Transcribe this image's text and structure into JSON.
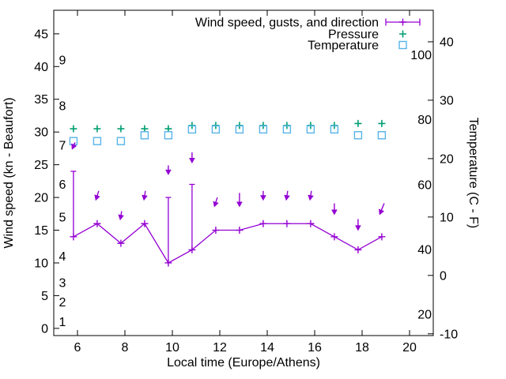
{
  "chart_data": {
    "type": "line",
    "title": "",
    "xlabel": "Local time (Europe/Athens)",
    "x_ticks": [
      6,
      8,
      10,
      12,
      14,
      16,
      18,
      20
    ],
    "x_plot_range": [
      5,
      21
    ],
    "x": [
      5.83,
      6.83,
      7.83,
      8.83,
      9.83,
      10.83,
      11.83,
      12.83,
      13.83,
      14.83,
      15.83,
      16.83,
      17.83,
      18.83
    ],
    "left_axis": {
      "label": "Wind speed (kn - Beaufort)",
      "ticks_kn": [
        0,
        5,
        10,
        15,
        20,
        25,
        30,
        35,
        40,
        45
      ],
      "plot_range_kn": [
        -1.1,
        48.6
      ],
      "beaufort_inner_labels": [
        {
          "bft": "1",
          "kn": 1
        },
        {
          "bft": "2",
          "kn": 4
        },
        {
          "bft": "3",
          "kn": 7
        },
        {
          "bft": "4",
          "kn": 11
        },
        {
          "bft": "5",
          "kn": 17
        },
        {
          "bft": "6",
          "kn": 22
        },
        {
          "bft": "7",
          "kn": 28
        },
        {
          "bft": "8",
          "kn": 34
        },
        {
          "bft": "9",
          "kn": 41
        }
      ]
    },
    "right_axis": {
      "label": "Temperature (C - F)",
      "ticks_c": [
        -10,
        0,
        10,
        20,
        30,
        40
      ],
      "plot_range_c": [
        -10.3,
        45.4
      ],
      "fahrenheit_inner_labels": [
        20,
        40,
        60,
        80,
        100
      ]
    },
    "series": [
      {
        "name": "Wind speed, gusts, and direction",
        "color": "#9400d3",
        "style": "line-with-plus-markers-yerrorbars-and-direction-arrows",
        "wind_kn": [
          14,
          16,
          13,
          16,
          10,
          12,
          15,
          15,
          16,
          16,
          16,
          14,
          12,
          14
        ],
        "gust_kn": [
          24,
          16,
          13,
          16,
          20,
          22,
          15,
          15,
          16,
          16,
          16,
          14,
          12,
          14
        ],
        "direction_arrows": [
          {
            "tail_kn": 28.4,
            "head_kn": 27.3,
            "lean": -2
          },
          {
            "tail_kn": 21.0,
            "head_kn": 19.5,
            "lean": -2
          },
          {
            "tail_kn": 17.9,
            "head_kn": 16.5,
            "lean": -1
          },
          {
            "tail_kn": 21.0,
            "head_kn": 19.5,
            "lean": -1
          },
          {
            "tail_kn": 24.9,
            "head_kn": 23.4,
            "lean": 0
          },
          {
            "tail_kn": 26.9,
            "head_kn": 25.2,
            "lean": 0
          },
          {
            "tail_kn": 20.0,
            "head_kn": 18.5,
            "lean": -2
          },
          {
            "tail_kn": 20.7,
            "head_kn": 18.5,
            "lean": 0
          },
          {
            "tail_kn": 21.0,
            "head_kn": 19.5,
            "lean": 0
          },
          {
            "tail_kn": 21.0,
            "head_kn": 19.5,
            "lean": -1
          },
          {
            "tail_kn": 21.0,
            "head_kn": 19.5,
            "lean": -1
          },
          {
            "tail_kn": 19.1,
            "head_kn": 17.3,
            "lean": 0
          },
          {
            "tail_kn": 16.7,
            "head_kn": 14.9,
            "lean": 0
          },
          {
            "tail_kn": 19.1,
            "head_kn": 17.3,
            "lean": -3
          }
        ]
      },
      {
        "name": "Pressure",
        "color": "#009e73",
        "marker": "plus",
        "note": "no pressure scale shown; values are plotted positions on the left kn axis",
        "plotted_kn_axis": [
          30.5,
          30.5,
          30.5,
          30.5,
          30.5,
          31.0,
          31.0,
          31.0,
          31.0,
          31.0,
          31.0,
          31.0,
          31.3,
          31.3
        ]
      },
      {
        "name": "Temperature",
        "color": "#56b4e9",
        "marker": "open-square",
        "temp_c": [
          23,
          23,
          23,
          24,
          24,
          25,
          25,
          25,
          25,
          25,
          25,
          25,
          24,
          24
        ]
      }
    ],
    "legend_position": "top-right-inside",
    "grid": false,
    "background": "#ffffff",
    "border_color": "#000000"
  }
}
